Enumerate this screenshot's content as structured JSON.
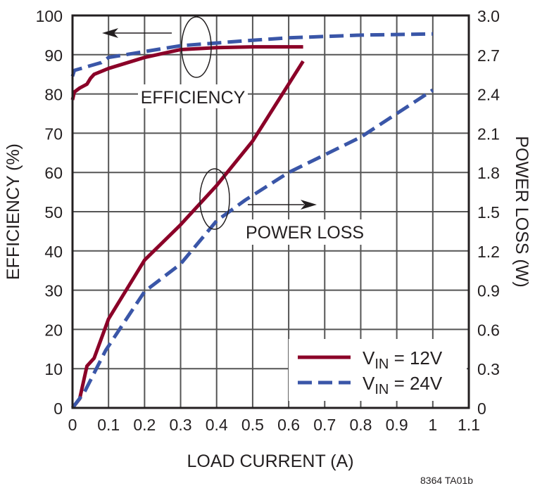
{
  "chart_data": {
    "type": "line",
    "xlabel": "LOAD CURRENT (A)",
    "ylabel": "EFFICIENCY (%)",
    "y2label": "POWER LOSS (W)",
    "xlim": [
      0,
      1.1
    ],
    "ylim": [
      0,
      100
    ],
    "y2lim": [
      0,
      3.0
    ],
    "xticks": [
      "0",
      "0.1",
      "0.2",
      "0.3",
      "0.4",
      "0.5",
      "0.6",
      "0.7",
      "0.8",
      "0.9",
      "1",
      "1.1"
    ],
    "yticks": [
      "0",
      "10",
      "20",
      "30",
      "40",
      "50",
      "60",
      "70",
      "80",
      "90",
      "100"
    ],
    "y2ticks": [
      "0",
      "0.3",
      "0.6",
      "0.9",
      "1.2",
      "1.5",
      "1.8",
      "2.1",
      "2.4",
      "2.7",
      "3.0"
    ],
    "grid": true,
    "legend_placement": "bottom-right",
    "annotations": {
      "efficiency": "EFFICIENCY",
      "power_loss": "POWER LOSS"
    },
    "figure_code": "8364 TA01b",
    "series": [
      {
        "name": "VIN = 12V",
        "legend_main": "V",
        "legend_sub": "IN",
        "legend_rest": " = 12V",
        "color": "#8b0028",
        "style": "solid",
        "axis": "left",
        "metric": "efficiency",
        "x": [
          0,
          0.005,
          0.02,
          0.04,
          0.05,
          0.06,
          0.1,
          0.2,
          0.3,
          0.4,
          0.5,
          0.64
        ],
        "y": [
          78.5,
          80.5,
          81.5,
          82.5,
          84,
          85,
          86.5,
          89.3,
          91.3,
          91.8,
          92,
          92
        ]
      },
      {
        "name": "VIN = 24V",
        "legend_main": "V",
        "legend_sub": "IN",
        "legend_rest": " = 24V",
        "color": "#3a56a8",
        "style": "dashed",
        "axis": "left",
        "metric": "efficiency",
        "x": [
          0,
          0.005,
          0.05,
          0.08,
          0.1,
          0.2,
          0.3,
          0.4,
          0.5,
          0.6,
          0.8,
          1.0
        ],
        "y": [
          84.5,
          86,
          87.2,
          88,
          89.3,
          90.8,
          92.3,
          93,
          93.7,
          94.3,
          95,
          95.3
        ]
      },
      {
        "name": "VIN = 12V",
        "color": "#8b0028",
        "style": "solid",
        "axis": "right",
        "metric": "power_loss",
        "x": [
          0,
          0.02,
          0.04,
          0.06,
          0.1,
          0.2,
          0.3,
          0.4,
          0.5,
          0.64
        ],
        "y": [
          0,
          0.07,
          0.32,
          0.38,
          0.68,
          1.13,
          1.4,
          1.7,
          2.04,
          2.65
        ]
      },
      {
        "name": "VIN = 24V",
        "color": "#3a56a8",
        "style": "dashed",
        "axis": "right",
        "metric": "power_loss",
        "x": [
          0,
          0.033,
          0.092,
          0.2,
          0.3,
          0.4,
          0.48,
          0.6,
          0.8,
          1.0
        ],
        "y": [
          0,
          0.12,
          0.44,
          0.89,
          1.1,
          1.43,
          1.59,
          1.8,
          2.07,
          2.43
        ]
      }
    ]
  }
}
